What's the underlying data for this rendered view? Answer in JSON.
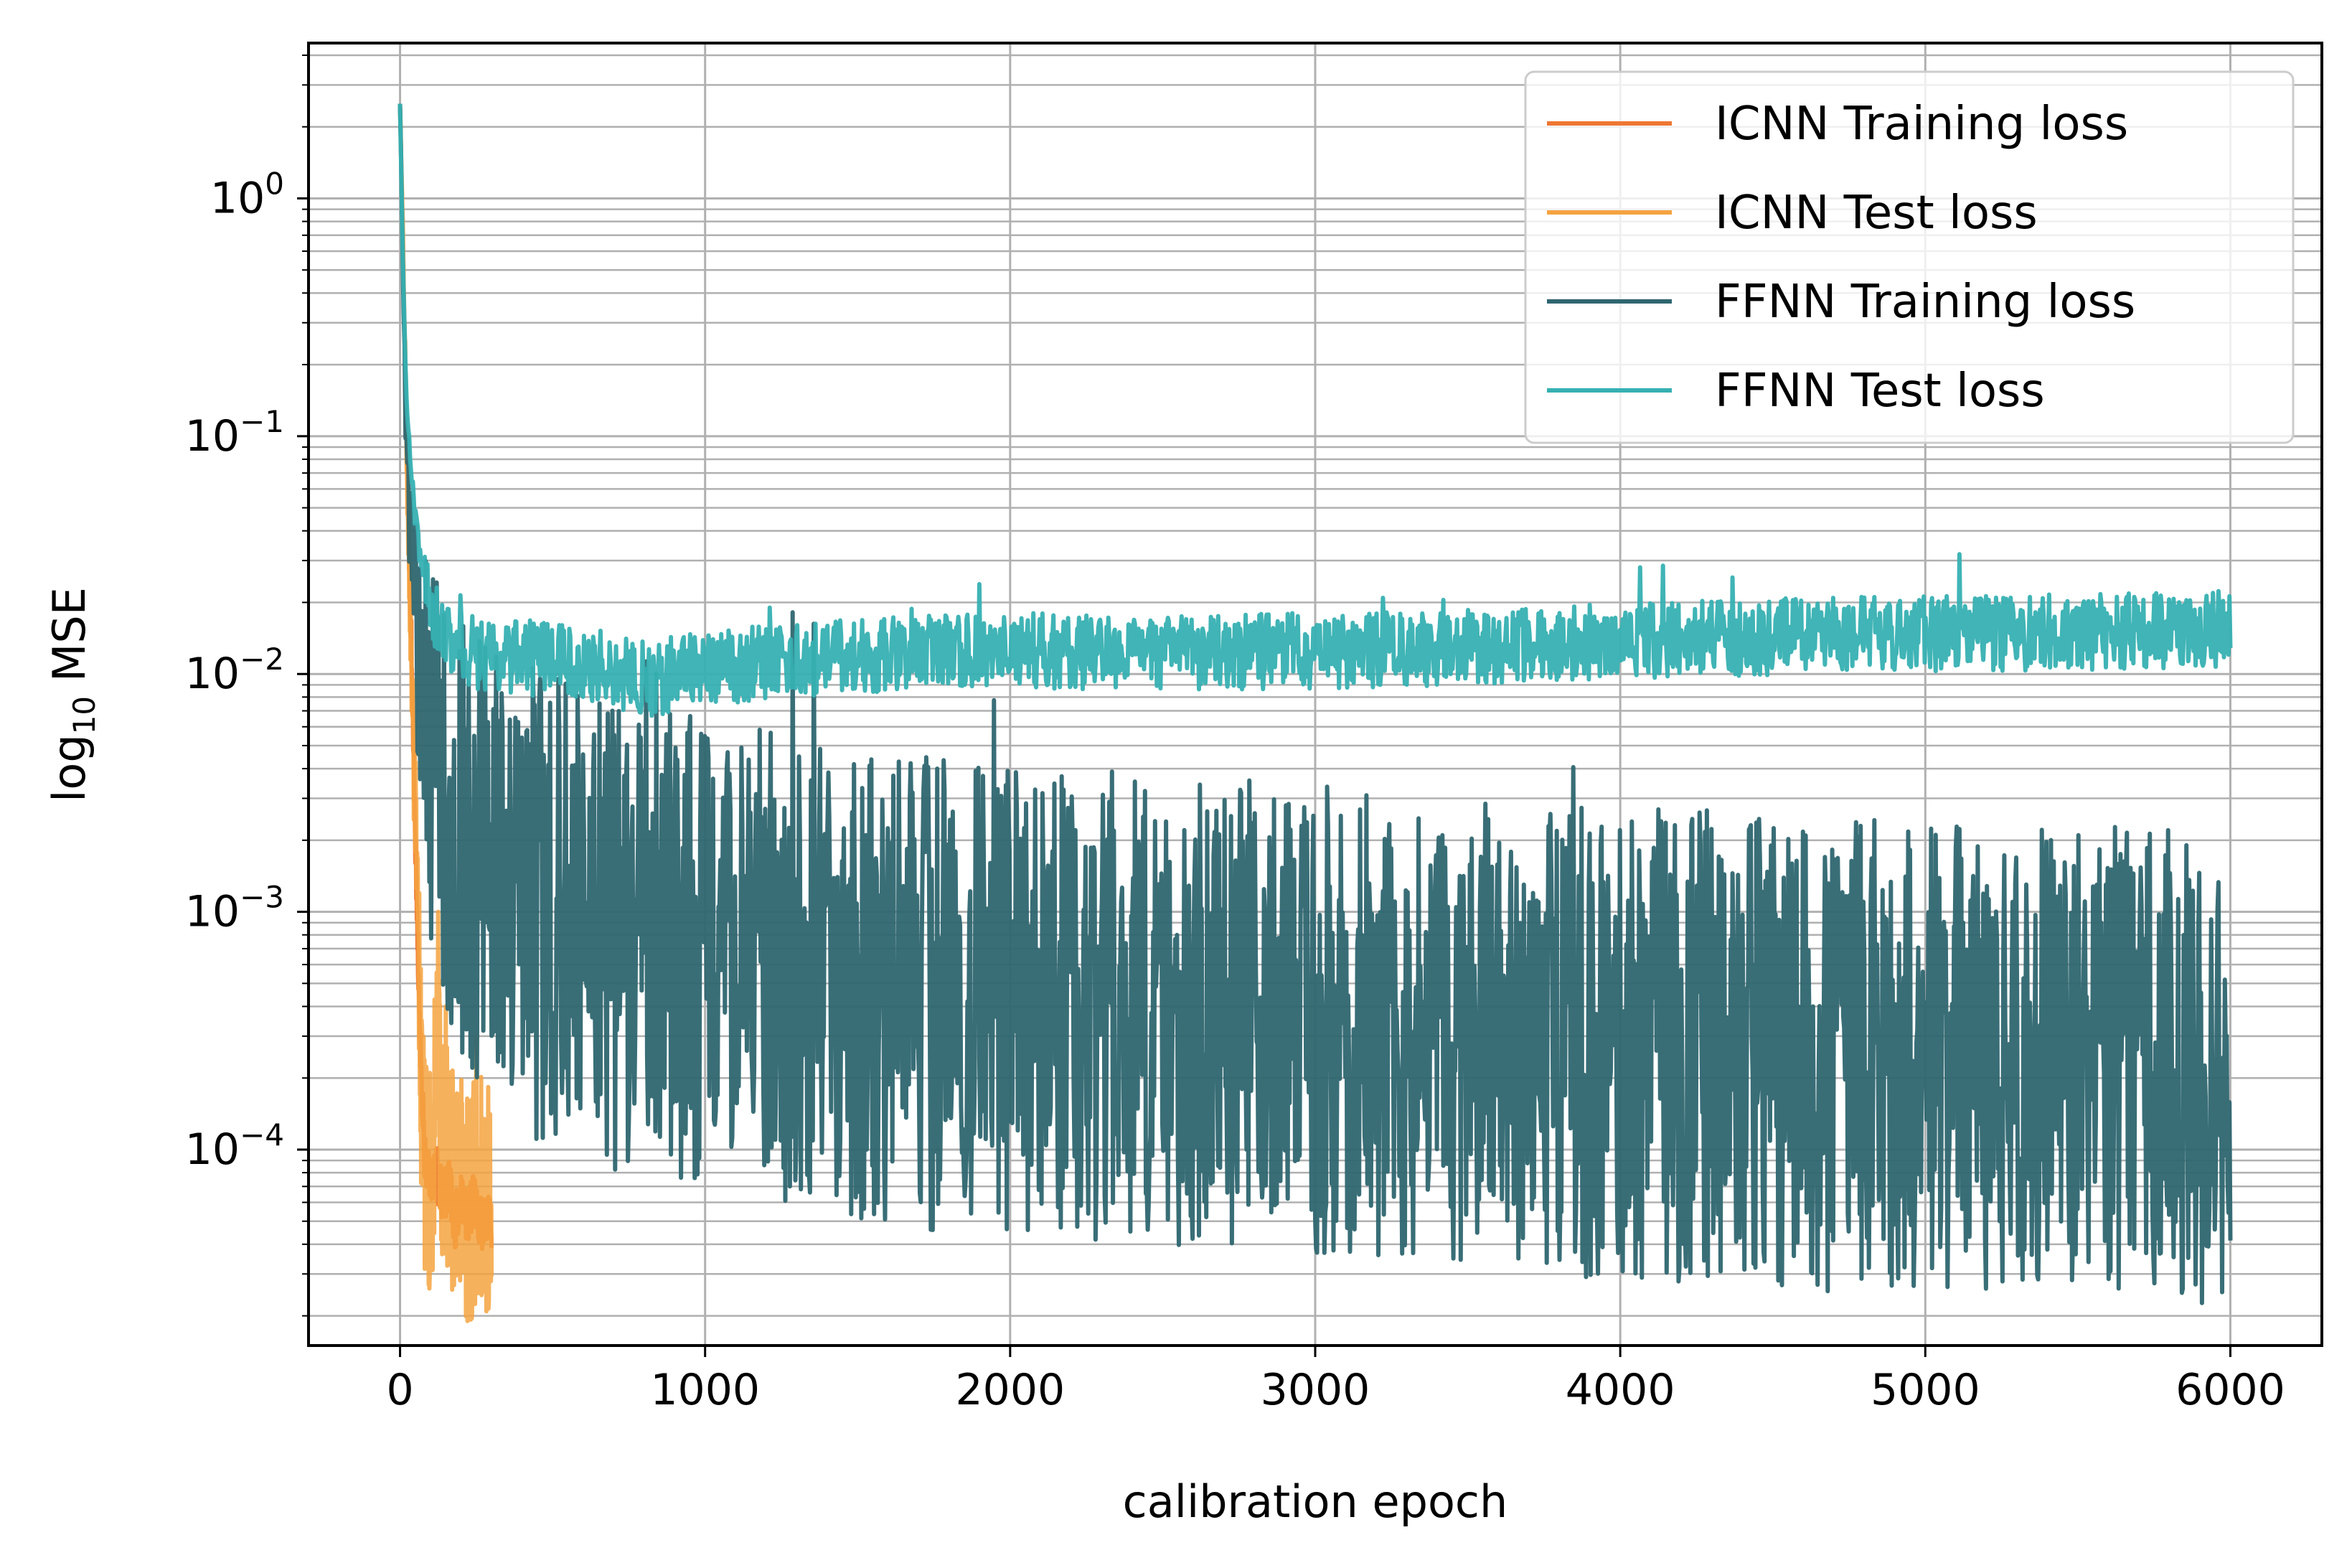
{
  "chart_data": {
    "type": "line",
    "title": "",
    "xlabel": "calibration epoch",
    "ylabel_base": "log",
    "ylabel_sub": "10",
    "ylabel_rest": " MSE",
    "yscale": "log",
    "xlim": [
      -300,
      6300
    ],
    "ylim": [
      1.5e-05,
      4.5
    ],
    "x_ticks": [
      0,
      1000,
      2000,
      3000,
      4000,
      5000,
      6000
    ],
    "x_tick_labels": [
      "0",
      "1000",
      "2000",
      "3000",
      "4000",
      "5000",
      "6000"
    ],
    "y_ticks": [
      0.0001,
      0.001,
      0.01,
      0.1,
      1
    ],
    "y_tick_labels": [
      {
        "base": "10",
        "exp": "−4"
      },
      {
        "base": "10",
        "exp": "−3"
      },
      {
        "base": "10",
        "exp": "−2"
      },
      {
        "base": "10",
        "exp": "−1"
      },
      {
        "base": "10",
        "exp": "0"
      }
    ],
    "grid": true,
    "legend_position": "top-right",
    "series": [
      {
        "name": "ICNN Training loss",
        "color": "#ee7733",
        "x": [
          0,
          10,
          20,
          30,
          40,
          50,
          60,
          70,
          80,
          90,
          100,
          120,
          140,
          160,
          180,
          200,
          220,
          240,
          260,
          280,
          300
        ],
        "y_center": [
          2.5,
          0.6,
          0.12,
          0.03,
          0.008,
          0.002,
          0.0006,
          0.0002,
          0.0001,
          8e-05,
          7e-05,
          8e-05,
          6e-05,
          7e-05,
          5e-05,
          6e-05,
          5e-05,
          6e-05,
          5e-05,
          5e-05,
          5e-05
        ],
        "noise": 0.12
      },
      {
        "name": "ICNN Test loss",
        "color": "#f4a340",
        "x": [
          0,
          10,
          20,
          30,
          40,
          50,
          60,
          70,
          80,
          90,
          100,
          110,
          120,
          130,
          140,
          160,
          180,
          200,
          220,
          240,
          260,
          280,
          300
        ],
        "y_center": [
          2.5,
          0.6,
          0.12,
          0.03,
          0.008,
          0.002,
          0.0006,
          0.0002,
          9e-05,
          7e-05,
          8e-05,
          0.0001,
          0.0003,
          0.00015,
          0.0001,
          8e-05,
          8e-05,
          7e-05,
          6e-05,
          6e-05,
          8e-05,
          6e-05,
          6e-05
        ],
        "noise": 0.5,
        "spikes": [
          {
            "x": 125,
            "y": 0.001
          },
          {
            "x": 150,
            "y": 0.0004
          },
          {
            "x": 250,
            "y": 0.0003
          }
        ]
      },
      {
        "name": "FFNN Training loss",
        "color": "#2e6670",
        "x": [
          0,
          10,
          20,
          40,
          60,
          80,
          100,
          150,
          200,
          300,
          400,
          500,
          700,
          1000,
          1500,
          2000,
          2500,
          3000,
          3500,
          4000,
          4500,
          5000,
          5500,
          6000
        ],
        "y_center": [
          2.5,
          0.5,
          0.1,
          0.025,
          0.012,
          0.007,
          0.005,
          0.003,
          0.0022,
          0.0016,
          0.0012,
          0.001,
          0.0008,
          0.00065,
          0.0005,
          0.00042,
          0.00038,
          0.00034,
          0.0003,
          0.00028,
          0.00026,
          0.00024,
          0.00023,
          0.00022
        ],
        "noise": 1.0
      },
      {
        "name": "FFNN Test loss",
        "color": "#36b0b2",
        "x": [
          0,
          10,
          20,
          40,
          60,
          80,
          100,
          150,
          200,
          300,
          500,
          700,
          800,
          1000,
          1500,
          2000,
          2500,
          3000,
          3500,
          4000,
          4500,
          5000,
          5500,
          6000
        ],
        "y_center": [
          2.5,
          0.5,
          0.15,
          0.06,
          0.035,
          0.025,
          0.02,
          0.015,
          0.013,
          0.012,
          0.0115,
          0.0105,
          0.0095,
          0.0105,
          0.012,
          0.0125,
          0.0123,
          0.0125,
          0.013,
          0.0138,
          0.0143,
          0.0148,
          0.015,
          0.0155
        ],
        "noise": 0.16
      }
    ]
  }
}
